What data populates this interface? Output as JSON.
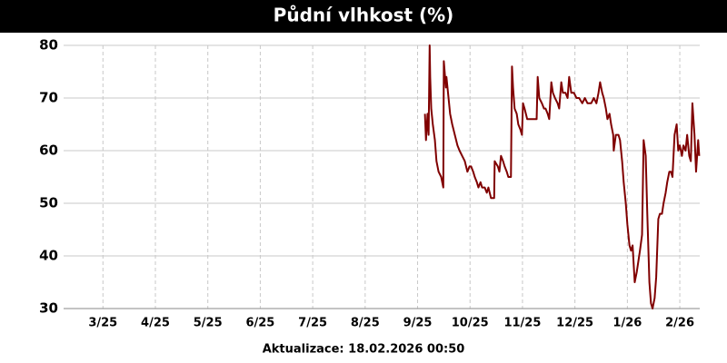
{
  "chart_data": {
    "type": "line",
    "title": "Půdní vlhkost (%)",
    "footer": "Aktualizace: 18.02.2026 00:50",
    "color": "#800000",
    "grid": true,
    "xlim": [
      2.25,
      14.38
    ],
    "xticks": [
      {
        "value": 3,
        "label": "3/25"
      },
      {
        "value": 4,
        "label": "4/25"
      },
      {
        "value": 5,
        "label": "5/25"
      },
      {
        "value": 6,
        "label": "6/25"
      },
      {
        "value": 7,
        "label": "7/25"
      },
      {
        "value": 8,
        "label": "8/25"
      },
      {
        "value": 9,
        "label": "9/25"
      },
      {
        "value": 10,
        "label": "10/25"
      },
      {
        "value": 11,
        "label": "11/25"
      },
      {
        "value": 12,
        "label": "12/25"
      },
      {
        "value": 13,
        "label": "1/26"
      },
      {
        "value": 14,
        "label": "2/26"
      }
    ],
    "ylim": [
      30,
      80
    ],
    "yticks": [
      30,
      40,
      50,
      60,
      70,
      80
    ],
    "x": [
      9.14,
      9.16,
      9.19,
      9.21,
      9.23,
      9.24,
      9.26,
      9.29,
      9.33,
      9.36,
      9.4,
      9.45,
      9.49,
      9.5,
      9.54,
      9.55,
      9.59,
      9.62,
      9.66,
      9.71,
      9.76,
      9.8,
      9.85,
      9.9,
      9.95,
      9.99,
      10.02,
      10.06,
      10.09,
      10.13,
      10.16,
      10.2,
      10.23,
      10.28,
      10.32,
      10.35,
      10.4,
      10.46,
      10.47,
      10.53,
      10.56,
      10.59,
      10.63,
      10.66,
      10.7,
      10.73,
      10.78,
      10.8,
      10.82,
      10.85,
      10.89,
      10.92,
      10.96,
      10.99,
      11.01,
      11.04,
      11.09,
      11.14,
      11.21,
      11.27,
      11.29,
      11.32,
      11.37,
      11.41,
      11.44,
      11.48,
      11.51,
      11.55,
      11.58,
      11.62,
      11.67,
      11.7,
      11.74,
      11.77,
      11.82,
      11.86,
      11.89,
      11.93,
      11.98,
      12.03,
      12.08,
      12.14,
      12.19,
      12.24,
      12.31,
      12.36,
      12.41,
      12.45,
      12.48,
      12.52,
      12.55,
      12.59,
      12.62,
      12.66,
      12.69,
      12.73,
      12.74,
      12.78,
      12.83,
      12.86,
      12.9,
      12.93,
      12.97,
      13.0,
      13.04,
      13.07,
      13.1,
      13.14,
      13.18,
      13.21,
      13.24,
      13.28,
      13.31,
      13.35,
      13.38,
      13.42,
      13.45,
      13.48,
      13.52,
      13.55,
      13.59,
      13.62,
      13.66,
      13.69,
      13.73,
      13.76,
      13.8,
      13.83,
      13.86,
      13.9,
      13.94,
      13.97,
      14.0,
      14.04,
      14.07,
      14.11,
      14.14,
      14.18,
      14.21,
      14.24,
      14.28,
      14.31,
      14.35,
      14.37
    ],
    "values": [
      67,
      62,
      67,
      63,
      80,
      74,
      68,
      65,
      62,
      58,
      56,
      55,
      53,
      77,
      72,
      74,
      70,
      67,
      65,
      63,
      61,
      60,
      59,
      58,
      56,
      57,
      57,
      56,
      55,
      54,
      53,
      54,
      53,
      53,
      52,
      53,
      51,
      51,
      58,
      57,
      56,
      59,
      58,
      57,
      56,
      55,
      55,
      76,
      72,
      68,
      67,
      65,
      64,
      63,
      69,
      68,
      66,
      66,
      66,
      66,
      74,
      70,
      69,
      68,
      68,
      67,
      66,
      73,
      71,
      70,
      69,
      68,
      73,
      71,
      71,
      70,
      74,
      71,
      71,
      70,
      70,
      69,
      70,
      69,
      69,
      70,
      69,
      71,
      73,
      71,
      70,
      68,
      66,
      67,
      65,
      63,
      60,
      63,
      63,
      62,
      58,
      54,
      50,
      46,
      42,
      41,
      42,
      35,
      37,
      39,
      41,
      44,
      62,
      59,
      48,
      35,
      31,
      30,
      32,
      36,
      47,
      48,
      48,
      50,
      52,
      54,
      56,
      56,
      55,
      63,
      65,
      60,
      61,
      59,
      61,
      60,
      63,
      59,
      58,
      69,
      63,
      56,
      62,
      59
    ]
  }
}
